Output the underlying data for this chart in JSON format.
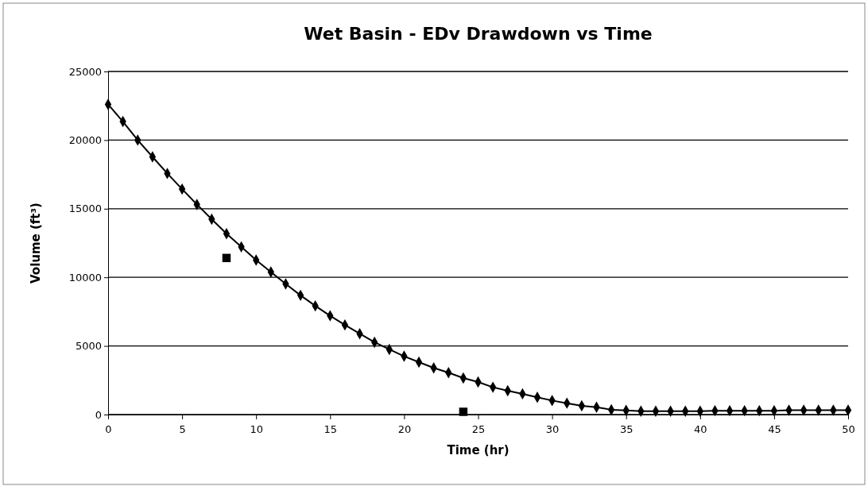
{
  "chart_data": {
    "type": "line",
    "title": "Wet Basin - EDv Drawdown vs Time",
    "xlabel": "Time (hr)",
    "ylabel": "Volume (ft³)",
    "xlim": [
      0,
      50
    ],
    "xticks": [
      0,
      5,
      10,
      15,
      20,
      25,
      30,
      35,
      40,
      45,
      50
    ],
    "ylim": [
      0,
      25000
    ],
    "yticks": [
      0,
      5000,
      10000,
      15000,
      20000,
      25000
    ],
    "grid": "y",
    "series": [
      {
        "type": "line",
        "marker": "diamond",
        "line_style": "solid",
        "color": "#000000",
        "x": [
          0,
          1,
          2,
          3,
          4,
          5,
          6,
          7,
          8,
          9,
          10,
          11,
          12,
          13,
          14,
          15,
          16,
          17,
          18,
          19,
          20,
          21,
          22,
          23,
          24,
          25,
          26,
          27,
          28,
          29,
          30,
          31,
          32,
          33,
          34,
          35,
          36,
          37,
          38,
          39,
          40,
          41,
          42,
          43,
          44,
          45,
          46,
          47,
          48,
          49,
          50
        ],
        "values": [
          22600,
          21350,
          20000,
          18780,
          17570,
          16430,
          15310,
          14240,
          13180,
          12220,
          11260,
          10390,
          9520,
          8690,
          7920,
          7200,
          6530,
          5890,
          5270,
          4750,
          4250,
          3820,
          3400,
          3050,
          2660,
          2370,
          1990,
          1740,
          1510,
          1260,
          1020,
          830,
          640,
          540,
          350,
          300,
          250,
          250,
          250,
          250,
          250,
          280,
          280,
          280,
          280,
          280,
          320,
          320,
          320,
          320,
          320
        ]
      },
      {
        "type": "scatter",
        "marker": "square",
        "color": "#000000",
        "x": [
          8,
          24
        ],
        "values": [
          11410,
          200
        ]
      }
    ]
  }
}
